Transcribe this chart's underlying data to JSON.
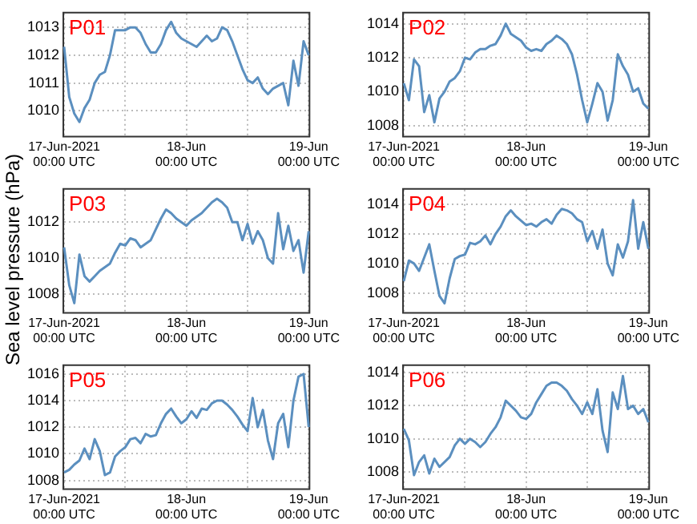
{
  "chart_data": [
    {
      "type": "line",
      "title": "P01",
      "grid": true,
      "x": [
        "2021-06-17T00:00",
        "2021-06-17T01:00",
        "2021-06-17T02:00",
        "2021-06-17T03:00",
        "2021-06-17T04:00",
        "2021-06-17T05:00",
        "2021-06-17T06:00",
        "2021-06-17T07:00",
        "2021-06-17T08:00",
        "2021-06-17T09:00",
        "2021-06-17T10:00",
        "2021-06-17T11:00",
        "2021-06-17T12:00",
        "2021-06-17T13:00",
        "2021-06-17T14:00",
        "2021-06-17T15:00",
        "2021-06-17T16:00",
        "2021-06-17T17:00",
        "2021-06-17T18:00",
        "2021-06-17T19:00",
        "2021-06-17T20:00",
        "2021-06-17T21:00",
        "2021-06-17T22:00",
        "2021-06-17T23:00",
        "2021-06-18T00:00",
        "2021-06-18T01:00",
        "2021-06-18T02:00",
        "2021-06-18T03:00",
        "2021-06-18T04:00",
        "2021-06-18T05:00",
        "2021-06-18T06:00",
        "2021-06-18T07:00",
        "2021-06-18T08:00",
        "2021-06-18T09:00",
        "2021-06-18T10:00",
        "2021-06-18T11:00",
        "2021-06-18T12:00",
        "2021-06-18T13:00",
        "2021-06-18T14:00",
        "2021-06-18T15:00",
        "2021-06-18T16:00",
        "2021-06-18T17:00",
        "2021-06-18T18:00",
        "2021-06-18T19:00",
        "2021-06-18T20:00",
        "2021-06-18T21:00",
        "2021-06-18T22:00",
        "2021-06-18T23:00",
        "2021-06-19T00:00"
      ],
      "xlim": [
        "2021-06-17T00:00",
        "2021-06-19T00:00"
      ],
      "xticks": [
        {
          "value": "2021-06-17T00:00",
          "label": "17-Jun-2021\n00:00 UTC"
        },
        {
          "value": "2021-06-17T12:00",
          "label": null
        },
        {
          "value": "2021-06-18T00:00",
          "label": "18-Jun\n00:00 UTC"
        },
        {
          "value": "2021-06-18T12:00",
          "label": null
        },
        {
          "value": "2021-06-19T00:00",
          "label": "19-Jun\n00:00 UTC"
        }
      ],
      "ylim": [
        1009.1,
        1013.5
      ],
      "yticks": [
        1010,
        1011,
        1012,
        1013
      ],
      "series": [
        {
          "color": "#5b8fbf",
          "values": [
            1012.3,
            1010.5,
            1009.9,
            1009.6,
            1010.1,
            1010.4,
            1011.0,
            1011.3,
            1011.4,
            1012.0,
            1012.9,
            1012.9,
            1012.9,
            1013.0,
            1013.0,
            1012.8,
            1012.4,
            1012.1,
            1012.1,
            1012.4,
            1012.9,
            1013.2,
            1012.8,
            1012.6,
            1012.5,
            1012.4,
            1012.3,
            1012.5,
            1012.7,
            1012.5,
            1012.6,
            1013.0,
            1012.9,
            1012.5,
            1012.0,
            1011.5,
            1011.1,
            1011.0,
            1011.2,
            1010.8,
            1010.6,
            1010.8,
            1010.9,
            1011.0,
            1010.2,
            1011.8,
            1010.9,
            1012.5,
            1012.0
          ]
        }
      ]
    },
    {
      "type": "line",
      "title": "P02",
      "grid": true,
      "x": [
        "2021-06-17T00:00",
        "2021-06-17T01:00",
        "2021-06-17T02:00",
        "2021-06-17T03:00",
        "2021-06-17T04:00",
        "2021-06-17T05:00",
        "2021-06-17T06:00",
        "2021-06-17T07:00",
        "2021-06-17T08:00",
        "2021-06-17T09:00",
        "2021-06-17T10:00",
        "2021-06-17T11:00",
        "2021-06-17T12:00",
        "2021-06-17T13:00",
        "2021-06-17T14:00",
        "2021-06-17T15:00",
        "2021-06-17T16:00",
        "2021-06-17T17:00",
        "2021-06-17T18:00",
        "2021-06-17T19:00",
        "2021-06-17T20:00",
        "2021-06-17T21:00",
        "2021-06-17T22:00",
        "2021-06-17T23:00",
        "2021-06-18T00:00",
        "2021-06-18T01:00",
        "2021-06-18T02:00",
        "2021-06-18T03:00",
        "2021-06-18T04:00",
        "2021-06-18T05:00",
        "2021-06-18T06:00",
        "2021-06-18T07:00",
        "2021-06-18T08:00",
        "2021-06-18T09:00",
        "2021-06-18T10:00",
        "2021-06-18T11:00",
        "2021-06-18T12:00",
        "2021-06-18T13:00",
        "2021-06-18T14:00",
        "2021-06-18T15:00",
        "2021-06-18T16:00",
        "2021-06-18T17:00",
        "2021-06-18T18:00",
        "2021-06-18T19:00",
        "2021-06-18T20:00",
        "2021-06-18T21:00",
        "2021-06-18T22:00",
        "2021-06-18T23:00",
        "2021-06-19T00:00"
      ],
      "xlim": [
        "2021-06-17T00:00",
        "2021-06-19T00:00"
      ],
      "xticks": [
        {
          "value": "2021-06-17T00:00",
          "label": "17-Jun-2021\n00:00 UTC"
        },
        {
          "value": "2021-06-17T12:00",
          "label": null
        },
        {
          "value": "2021-06-18T00:00",
          "label": "18-Jun\n00:00 UTC"
        },
        {
          "value": "2021-06-18T12:00",
          "label": null
        },
        {
          "value": "2021-06-19T00:00",
          "label": "19-Jun\n00:00 UTC"
        }
      ],
      "ylim": [
        1007.4,
        1014.6
      ],
      "yticks": [
        1008,
        1010,
        1012,
        1014
      ],
      "series": [
        {
          "color": "#5b8fbf",
          "values": [
            1010.5,
            1009.5,
            1011.9,
            1011.5,
            1008.8,
            1009.8,
            1008.2,
            1009.6,
            1010.0,
            1010.6,
            1010.8,
            1011.2,
            1012.0,
            1011.9,
            1012.3,
            1012.5,
            1012.5,
            1012.7,
            1012.8,
            1013.3,
            1014.0,
            1013.4,
            1013.2,
            1013.0,
            1012.6,
            1012.4,
            1012.5,
            1012.4,
            1012.8,
            1013.0,
            1013.3,
            1013.1,
            1012.8,
            1012.2,
            1011.0,
            1009.5,
            1008.2,
            1009.3,
            1010.5,
            1010.0,
            1008.3,
            1009.5,
            1012.2,
            1011.5,
            1011.0,
            1010.0,
            1010.2,
            1009.3,
            1009.0
          ]
        }
      ]
    },
    {
      "type": "line",
      "title": "P03",
      "ylabel": "Sea level pressure (hPa)",
      "grid": true,
      "x": [
        "2021-06-17T00:00",
        "2021-06-17T01:00",
        "2021-06-17T02:00",
        "2021-06-17T03:00",
        "2021-06-17T04:00",
        "2021-06-17T05:00",
        "2021-06-17T06:00",
        "2021-06-17T07:00",
        "2021-06-17T08:00",
        "2021-06-17T09:00",
        "2021-06-17T10:00",
        "2021-06-17T11:00",
        "2021-06-17T12:00",
        "2021-06-17T13:00",
        "2021-06-17T14:00",
        "2021-06-17T15:00",
        "2021-06-17T16:00",
        "2021-06-17T17:00",
        "2021-06-17T18:00",
        "2021-06-17T19:00",
        "2021-06-17T20:00",
        "2021-06-17T21:00",
        "2021-06-17T22:00",
        "2021-06-17T23:00",
        "2021-06-18T00:00",
        "2021-06-18T01:00",
        "2021-06-18T02:00",
        "2021-06-18T03:00",
        "2021-06-18T04:00",
        "2021-06-18T05:00",
        "2021-06-18T06:00",
        "2021-06-18T07:00",
        "2021-06-18T08:00",
        "2021-06-18T09:00",
        "2021-06-18T10:00",
        "2021-06-18T11:00",
        "2021-06-18T12:00",
        "2021-06-18T13:00",
        "2021-06-18T14:00",
        "2021-06-18T15:00",
        "2021-06-18T16:00",
        "2021-06-18T17:00",
        "2021-06-18T18:00",
        "2021-06-18T19:00",
        "2021-06-18T20:00",
        "2021-06-18T21:00",
        "2021-06-18T22:00",
        "2021-06-18T23:00",
        "2021-06-19T00:00"
      ],
      "xlim": [
        "2021-06-17T00:00",
        "2021-06-19T00:00"
      ],
      "xticks": [
        {
          "value": "2021-06-17T00:00",
          "label": "17-Jun-2021\n00:00 UTC"
        },
        {
          "value": "2021-06-17T12:00",
          "label": null
        },
        {
          "value": "2021-06-18T00:00",
          "label": "18-Jun\n00:00 UTC"
        },
        {
          "value": "2021-06-18T12:00",
          "label": null
        },
        {
          "value": "2021-06-19T00:00",
          "label": "19-Jun\n00:00 UTC"
        }
      ],
      "ylim": [
        1007.0,
        1013.8
      ],
      "yticks": [
        1008,
        1010,
        1012
      ],
      "series": [
        {
          "color": "#5b8fbf",
          "values": [
            1010.6,
            1008.5,
            1007.5,
            1010.2,
            1009.0,
            1008.7,
            1009.0,
            1009.3,
            1009.5,
            1009.7,
            1010.3,
            1010.8,
            1010.7,
            1011.1,
            1011.0,
            1010.6,
            1010.8,
            1011.0,
            1011.6,
            1012.2,
            1012.7,
            1012.5,
            1012.2,
            1012.0,
            1011.8,
            1012.1,
            1012.3,
            1012.5,
            1012.8,
            1013.1,
            1013.3,
            1013.1,
            1012.8,
            1012.0,
            1012.0,
            1011.0,
            1011.9,
            1010.8,
            1011.5,
            1011.0,
            1010.0,
            1009.7,
            1012.5,
            1010.5,
            1011.8,
            1010.4,
            1011.0,
            1009.2,
            1011.5
          ]
        }
      ]
    },
    {
      "type": "line",
      "title": "P04",
      "grid": true,
      "x": [
        "2021-06-17T00:00",
        "2021-06-17T01:00",
        "2021-06-17T02:00",
        "2021-06-17T03:00",
        "2021-06-17T04:00",
        "2021-06-17T05:00",
        "2021-06-17T06:00",
        "2021-06-17T07:00",
        "2021-06-17T08:00",
        "2021-06-17T09:00",
        "2021-06-17T10:00",
        "2021-06-17T11:00",
        "2021-06-17T12:00",
        "2021-06-17T13:00",
        "2021-06-17T14:00",
        "2021-06-17T15:00",
        "2021-06-17T16:00",
        "2021-06-17T17:00",
        "2021-06-17T18:00",
        "2021-06-17T19:00",
        "2021-06-17T20:00",
        "2021-06-17T21:00",
        "2021-06-17T22:00",
        "2021-06-17T23:00",
        "2021-06-18T00:00",
        "2021-06-18T01:00",
        "2021-06-18T02:00",
        "2021-06-18T03:00",
        "2021-06-18T04:00",
        "2021-06-18T05:00",
        "2021-06-18T06:00",
        "2021-06-18T07:00",
        "2021-06-18T08:00",
        "2021-06-18T09:00",
        "2021-06-18T10:00",
        "2021-06-18T11:00",
        "2021-06-18T12:00",
        "2021-06-18T13:00",
        "2021-06-18T14:00",
        "2021-06-18T15:00",
        "2021-06-18T16:00",
        "2021-06-18T17:00",
        "2021-06-18T18:00",
        "2021-06-18T19:00",
        "2021-06-18T20:00",
        "2021-06-18T21:00",
        "2021-06-18T22:00",
        "2021-06-18T23:00",
        "2021-06-19T00:00"
      ],
      "xlim": [
        "2021-06-17T00:00",
        "2021-06-19T00:00"
      ],
      "xticks": [
        {
          "value": "2021-06-17T00:00",
          "label": "17-Jun-2021\n00:00 UTC"
        },
        {
          "value": "2021-06-17T12:00",
          "label": null
        },
        {
          "value": "2021-06-18T00:00",
          "label": "18-Jun\n00:00 UTC"
        },
        {
          "value": "2021-06-18T12:00",
          "label": null
        },
        {
          "value": "2021-06-19T00:00",
          "label": "19-Jun\n00:00 UTC"
        }
      ],
      "ylim": [
        1006.7,
        1015.0
      ],
      "yticks": [
        1008,
        1010,
        1012,
        1014
      ],
      "series": [
        {
          "color": "#5b8fbf",
          "values": [
            1008.8,
            1010.2,
            1010.0,
            1009.5,
            1010.4,
            1011.3,
            1009.5,
            1007.8,
            1007.3,
            1009.0,
            1010.3,
            1010.5,
            1010.6,
            1011.4,
            1011.3,
            1011.5,
            1011.9,
            1011.3,
            1012.0,
            1012.5,
            1013.2,
            1013.6,
            1013.2,
            1012.9,
            1012.6,
            1012.7,
            1012.5,
            1012.8,
            1013.0,
            1012.7,
            1013.3,
            1013.7,
            1013.6,
            1013.4,
            1013.0,
            1012.8,
            1011.5,
            1012.2,
            1011.0,
            1012.3,
            1010.0,
            1009.2,
            1011.3,
            1010.4,
            1011.5,
            1014.3,
            1011.0,
            1012.8,
            1011.0
          ]
        }
      ]
    },
    {
      "type": "line",
      "title": "P05",
      "grid": true,
      "x": [
        "2021-06-17T00:00",
        "2021-06-17T01:00",
        "2021-06-17T02:00",
        "2021-06-17T03:00",
        "2021-06-17T04:00",
        "2021-06-17T05:00",
        "2021-06-17T06:00",
        "2021-06-17T07:00",
        "2021-06-17T08:00",
        "2021-06-17T09:00",
        "2021-06-17T10:00",
        "2021-06-17T11:00",
        "2021-06-17T12:00",
        "2021-06-17T13:00",
        "2021-06-17T14:00",
        "2021-06-17T15:00",
        "2021-06-17T16:00",
        "2021-06-17T17:00",
        "2021-06-17T18:00",
        "2021-06-17T19:00",
        "2021-06-17T20:00",
        "2021-06-17T21:00",
        "2021-06-17T22:00",
        "2021-06-17T23:00",
        "2021-06-18T00:00",
        "2021-06-18T01:00",
        "2021-06-18T02:00",
        "2021-06-18T03:00",
        "2021-06-18T04:00",
        "2021-06-18T05:00",
        "2021-06-18T06:00",
        "2021-06-18T07:00",
        "2021-06-18T08:00",
        "2021-06-18T09:00",
        "2021-06-18T10:00",
        "2021-06-18T11:00",
        "2021-06-18T12:00",
        "2021-06-18T13:00",
        "2021-06-18T14:00",
        "2021-06-18T15:00",
        "2021-06-18T16:00",
        "2021-06-18T17:00",
        "2021-06-18T18:00",
        "2021-06-18T19:00",
        "2021-06-18T20:00",
        "2021-06-18T21:00",
        "2021-06-18T22:00",
        "2021-06-18T23:00",
        "2021-06-19T00:00"
      ],
      "xlim": [
        "2021-06-17T00:00",
        "2021-06-19T00:00"
      ],
      "xticks": [
        {
          "value": "2021-06-17T00:00",
          "label": "17-Jun-2021\n00:00 UTC"
        },
        {
          "value": "2021-06-17T12:00",
          "label": null
        },
        {
          "value": "2021-06-18T00:00",
          "label": "18-Jun\n00:00 UTC"
        },
        {
          "value": "2021-06-18T12:00",
          "label": null
        },
        {
          "value": "2021-06-19T00:00",
          "label": "19-Jun\n00:00 UTC"
        }
      ],
      "ylim": [
        1007.4,
        1016.6
      ],
      "yticks": [
        1008,
        1010,
        1012,
        1014,
        1016
      ],
      "series": [
        {
          "color": "#5b8fbf",
          "values": [
            1008.6,
            1008.8,
            1009.2,
            1009.5,
            1010.4,
            1009.6,
            1011.1,
            1010.2,
            1008.4,
            1008.6,
            1009.8,
            1010.2,
            1010.5,
            1011.1,
            1011.2,
            1010.8,
            1011.5,
            1011.3,
            1011.4,
            1012.3,
            1013.0,
            1013.4,
            1012.8,
            1012.3,
            1012.6,
            1013.2,
            1012.7,
            1013.4,
            1013.3,
            1013.8,
            1014.0,
            1014.0,
            1013.7,
            1013.3,
            1012.8,
            1012.2,
            1011.7,
            1014.2,
            1012.0,
            1013.3,
            1011.0,
            1009.6,
            1012.3,
            1013.0,
            1010.5,
            1014.0,
            1015.8,
            1016.0,
            1012.0
          ]
        }
      ]
    },
    {
      "type": "line",
      "title": "P06",
      "grid": true,
      "x": [
        "2021-06-17T00:00",
        "2021-06-17T01:00",
        "2021-06-17T02:00",
        "2021-06-17T03:00",
        "2021-06-17T04:00",
        "2021-06-17T05:00",
        "2021-06-17T06:00",
        "2021-06-17T07:00",
        "2021-06-17T08:00",
        "2021-06-17T09:00",
        "2021-06-17T10:00",
        "2021-06-17T11:00",
        "2021-06-17T12:00",
        "2021-06-17T13:00",
        "2021-06-17T14:00",
        "2021-06-17T15:00",
        "2021-06-17T16:00",
        "2021-06-17T17:00",
        "2021-06-17T18:00",
        "2021-06-17T19:00",
        "2021-06-17T20:00",
        "2021-06-17T21:00",
        "2021-06-17T22:00",
        "2021-06-17T23:00",
        "2021-06-18T00:00",
        "2021-06-18T01:00",
        "2021-06-18T02:00",
        "2021-06-18T03:00",
        "2021-06-18T04:00",
        "2021-06-18T05:00",
        "2021-06-18T06:00",
        "2021-06-18T07:00",
        "2021-06-18T08:00",
        "2021-06-18T09:00",
        "2021-06-18T10:00",
        "2021-06-18T11:00",
        "2021-06-18T12:00",
        "2021-06-18T13:00",
        "2021-06-18T14:00",
        "2021-06-18T15:00",
        "2021-06-18T16:00",
        "2021-06-18T17:00",
        "2021-06-18T18:00",
        "2021-06-18T19:00",
        "2021-06-18T20:00",
        "2021-06-18T21:00",
        "2021-06-18T22:00",
        "2021-06-18T23:00",
        "2021-06-19T00:00"
      ],
      "xlim": [
        "2021-06-17T00:00",
        "2021-06-19T00:00"
      ],
      "xticks": [
        {
          "value": "2021-06-17T00:00",
          "label": "17-Jun-2021\n00:00 UTC"
        },
        {
          "value": "2021-06-17T12:00",
          "label": null
        },
        {
          "value": "2021-06-18T00:00",
          "label": "18-Jun\n00:00 UTC"
        },
        {
          "value": "2021-06-18T12:00",
          "label": null
        },
        {
          "value": "2021-06-19T00:00",
          "label": "19-Jun\n00:00 UTC"
        }
      ],
      "ylim": [
        1007.0,
        1014.4
      ],
      "yticks": [
        1008,
        1010,
        1012,
        1014
      ],
      "series": [
        {
          "color": "#5b8fbf",
          "values": [
            1010.6,
            1009.9,
            1007.8,
            1008.6,
            1009.0,
            1007.9,
            1008.8,
            1008.3,
            1008.6,
            1008.9,
            1009.6,
            1010.0,
            1009.7,
            1010.0,
            1009.8,
            1009.5,
            1009.8,
            1010.3,
            1010.7,
            1011.3,
            1012.3,
            1012.0,
            1011.7,
            1011.3,
            1011.2,
            1011.5,
            1012.2,
            1012.7,
            1013.2,
            1013.4,
            1013.4,
            1013.2,
            1012.9,
            1012.4,
            1012.0,
            1011.5,
            1012.2,
            1011.5,
            1013.0,
            1010.5,
            1009.2,
            1012.8,
            1011.8,
            1013.8,
            1011.8,
            1012.0,
            1011.5,
            1011.8,
            1011.0
          ]
        }
      ]
    }
  ]
}
